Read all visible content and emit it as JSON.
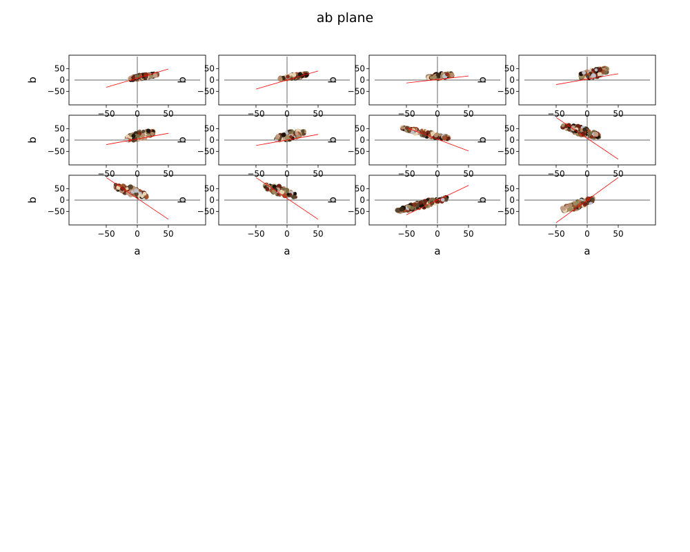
{
  "figure": {
    "title": "ab plane"
  },
  "chart_data": {
    "type": "scatter",
    "title": "ab plane",
    "grid": false,
    "legend": "none",
    "xlim": [
      -110,
      110
    ],
    "ylim": [
      -110,
      110
    ],
    "xticks": [
      -50,
      0,
      50
    ],
    "yticks": [
      -50,
      0,
      50
    ],
    "xlabel": "a",
    "ylabel": "b",
    "axis_line_color": "#808080",
    "fit_line_color": "#ff0000",
    "palette": [
      "#1c120c",
      "#3a2a1a",
      "#5a4630",
      "#7a6a45",
      "#a08a60",
      "#b48c6c",
      "#c39b84",
      "#a0522d",
      "#8b2e16",
      "#6a2314",
      "#c0c0c8",
      "#e8d2b0"
    ],
    "panels": [
      {
        "cloud_center": [
          10,
          15
        ],
        "cloud_size": [
          22,
          20
        ],
        "cloud_tilt": 0.45,
        "fit_line": {
          "x": [
            -50,
            50
          ],
          "y": [
            -32,
            49
          ]
        }
      },
      {
        "cloud_center": [
          10,
          15
        ],
        "cloud_size": [
          22,
          20
        ],
        "cloud_tilt": 0.45,
        "fit_line": {
          "x": [
            -50,
            50
          ],
          "y": [
            -40,
            40
          ]
        }
      },
      {
        "cloud_center": [
          5,
          18
        ],
        "cloud_size": [
          20,
          22
        ],
        "cloud_tilt": 0.3,
        "fit_line": {
          "x": [
            -50,
            50
          ],
          "y": [
            -13,
            18
          ]
        }
      },
      {
        "cloud_center": [
          10,
          30
        ],
        "cloud_size": [
          22,
          45
        ],
        "cloud_tilt": 0.6,
        "fit_line": {
          "x": [
            -50,
            50
          ],
          "y": [
            -20,
            28
          ]
        }
      },
      {
        "cloud_center": [
          5,
          20
        ],
        "cloud_size": [
          22,
          40
        ],
        "cloud_tilt": 0.6,
        "fit_line": {
          "x": [
            -50,
            50
          ],
          "y": [
            -20,
            30
          ]
        }
      },
      {
        "cloud_center": [
          5,
          20
        ],
        "cloud_size": [
          22,
          40
        ],
        "cloud_tilt": 0.6,
        "fit_line": {
          "x": [
            -50,
            50
          ],
          "y": [
            -24,
            25
          ]
        }
      },
      {
        "cloud_center": [
          -20,
          30
        ],
        "cloud_size": [
          38,
          25
        ],
        "cloud_tilt": -0.6,
        "fit_line": {
          "x": [
            -50,
            50
          ],
          "y": [
            55,
            -48
          ]
        }
      },
      {
        "cloud_center": [
          -10,
          40
        ],
        "cloud_size": [
          30,
          40
        ],
        "cloud_tilt": -0.8,
        "fit_line": {
          "x": [
            -50,
            50
          ],
          "y": [
            100,
            -85
          ]
        }
      },
      {
        "cloud_center": [
          -10,
          40
        ],
        "cloud_size": [
          25,
          40
        ],
        "cloud_tilt": -0.8,
        "fit_line": {
          "x": [
            -50,
            50
          ],
          "y": [
            100,
            -85
          ]
        }
      },
      {
        "cloud_center": [
          -10,
          40
        ],
        "cloud_size": [
          25,
          40
        ],
        "cloud_tilt": -0.8,
        "fit_line": {
          "x": [
            -50,
            50
          ],
          "y": [
            100,
            -85
          ]
        }
      },
      {
        "cloud_center": [
          -25,
          -20
        ],
        "cloud_size": [
          40,
          30
        ],
        "cloud_tilt": 0.7,
        "fit_line": {
          "x": [
            -50,
            50
          ],
          "y": [
            -65,
            65
          ]
        }
      },
      {
        "cloud_center": [
          -15,
          -20
        ],
        "cloud_size": [
          25,
          35
        ],
        "cloud_tilt": 0.9,
        "fit_line": {
          "x": [
            -50,
            50
          ],
          "y": [
            -100,
            100
          ]
        }
      }
    ]
  }
}
